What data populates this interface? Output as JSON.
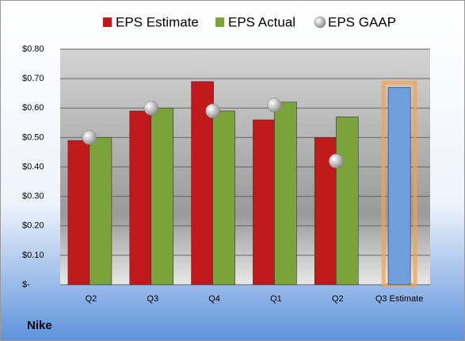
{
  "chart_data": {
    "type": "bar",
    "label": "Nike",
    "categories": [
      "Q2",
      "Q3",
      "Q4",
      "Q1",
      "Q2",
      "Q3 Estimate"
    ],
    "series": [
      {
        "name": "EPS Estimate",
        "color": "#c0191c",
        "colors": [
          "#c0191c",
          "#c0191c",
          "#c0191c",
          "#c0191c",
          "#c0191c",
          "#6f9fdc"
        ],
        "values": [
          0.49,
          0.59,
          0.69,
          0.56,
          0.5,
          0.67
        ]
      },
      {
        "name": "EPS Actual",
        "color": "#7aa33a",
        "values": [
          0.5,
          0.6,
          0.59,
          0.62,
          0.57,
          null
        ]
      },
      {
        "name": "EPS GAAP",
        "color": "#a8a8a8",
        "marker": "circle",
        "values": [
          0.5,
          0.6,
          0.59,
          0.61,
          0.42,
          null
        ]
      }
    ],
    "ylim": [
      0,
      0.8
    ],
    "yticks": [
      {
        "value": 0,
        "label": "$-"
      },
      {
        "value": 0.1,
        "label": "$0.10"
      },
      {
        "value": 0.2,
        "label": "$0.20"
      },
      {
        "value": 0.3,
        "label": "$0.30"
      },
      {
        "value": 0.4,
        "label": "$0.40"
      },
      {
        "value": 0.5,
        "label": "$0.50"
      },
      {
        "value": 0.6,
        "label": "$0.60"
      },
      {
        "value": 0.7,
        "label": "$0.70"
      },
      {
        "value": 0.8,
        "label": "$0.80"
      }
    ],
    "grid": true
  }
}
